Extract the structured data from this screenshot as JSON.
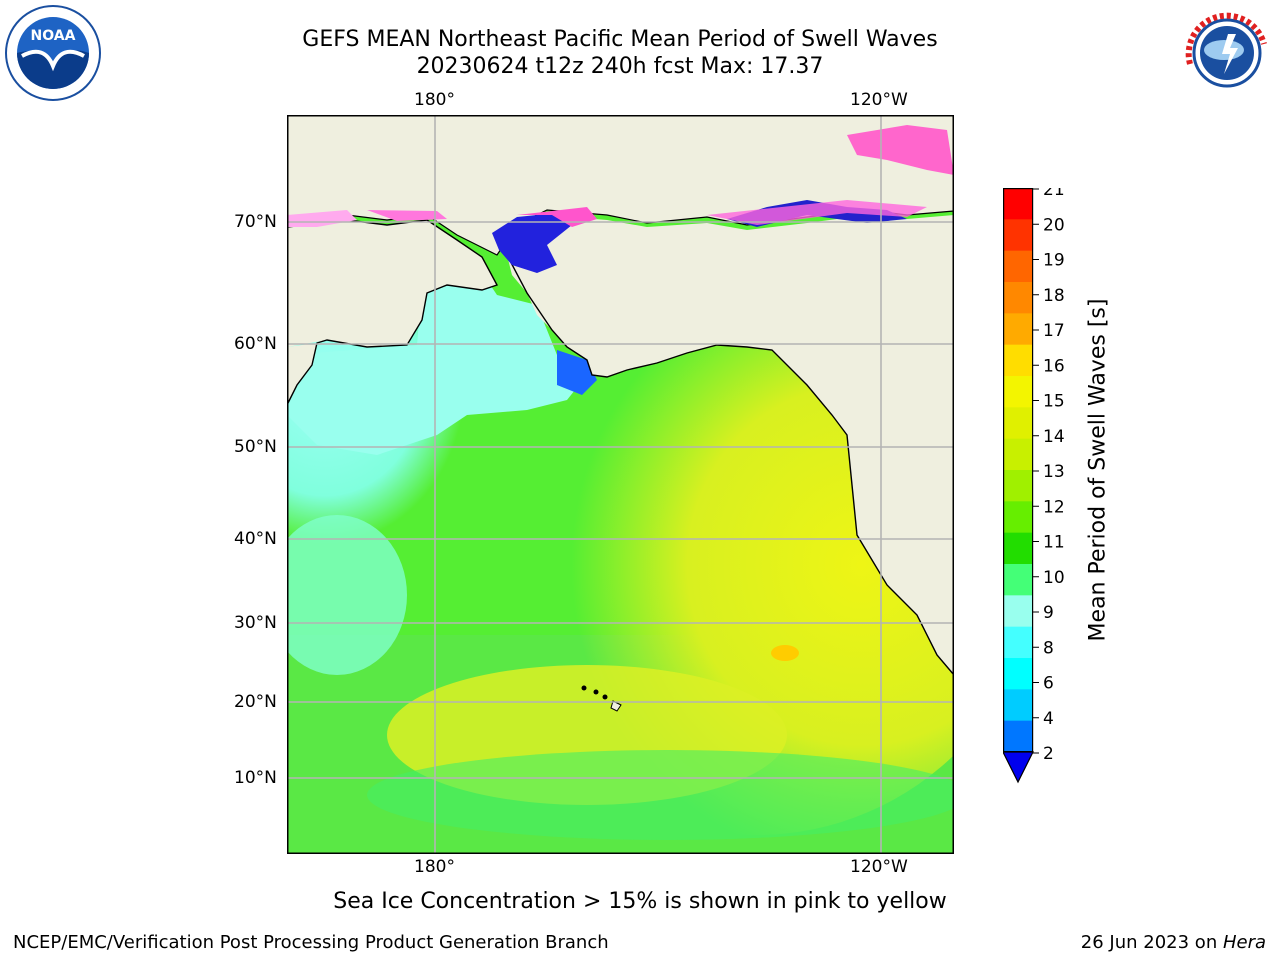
{
  "header": {
    "title_line1": "GEFS MEAN Northeast Pacific Mean Period of Swell Waves",
    "title_line2": "20230624 t12z 240h fcst   Max: 17.37"
  },
  "map": {
    "lon_labels": [
      "180°",
      "120°W"
    ],
    "lat_labels": [
      "70°N",
      "60°N",
      "50°N",
      "40°N",
      "30°N",
      "20°N",
      "10°N"
    ]
  },
  "colorbar": {
    "label": "Mean Period of Swell Waves [s]",
    "ticks": [
      "21",
      "20",
      "19",
      "18",
      "17",
      "16",
      "15",
      "14",
      "13",
      "12",
      "11",
      "10",
      "9",
      "8",
      "6",
      "4",
      "2"
    ],
    "colors": [
      "#ff0000",
      "#ff3300",
      "#ff6600",
      "#ff8800",
      "#ffaa00",
      "#ffdd00",
      "#f3f500",
      "#e0f000",
      "#c8f000",
      "#a0f000",
      "#66ee00",
      "#22dd00",
      "#44ff77",
      "#99ffee",
      "#44ffff",
      "#00ffff",
      "#00ccff",
      "#0077ff"
    ],
    "extend_color": "#0000ee"
  },
  "colors": {
    "land": "#efefdf",
    "ocean_warm": "#e8f020",
    "ocean_mid": "#55ee33",
    "ocean_cool": "#88ffff",
    "ice": "#ff55cc",
    "grid": "#b4b4b4"
  },
  "logos": {
    "left_name": "NOAA",
    "right_name": "NATIONAL WEATHER SERVICE"
  },
  "note": "Sea Ice Concentration > 15% is shown in pink to yellow",
  "footer": {
    "left": "NCEP/EMC/Verification Post Processing Product Generation Branch",
    "date": "26 Jun 2023 on ",
    "machine": "Hera"
  }
}
